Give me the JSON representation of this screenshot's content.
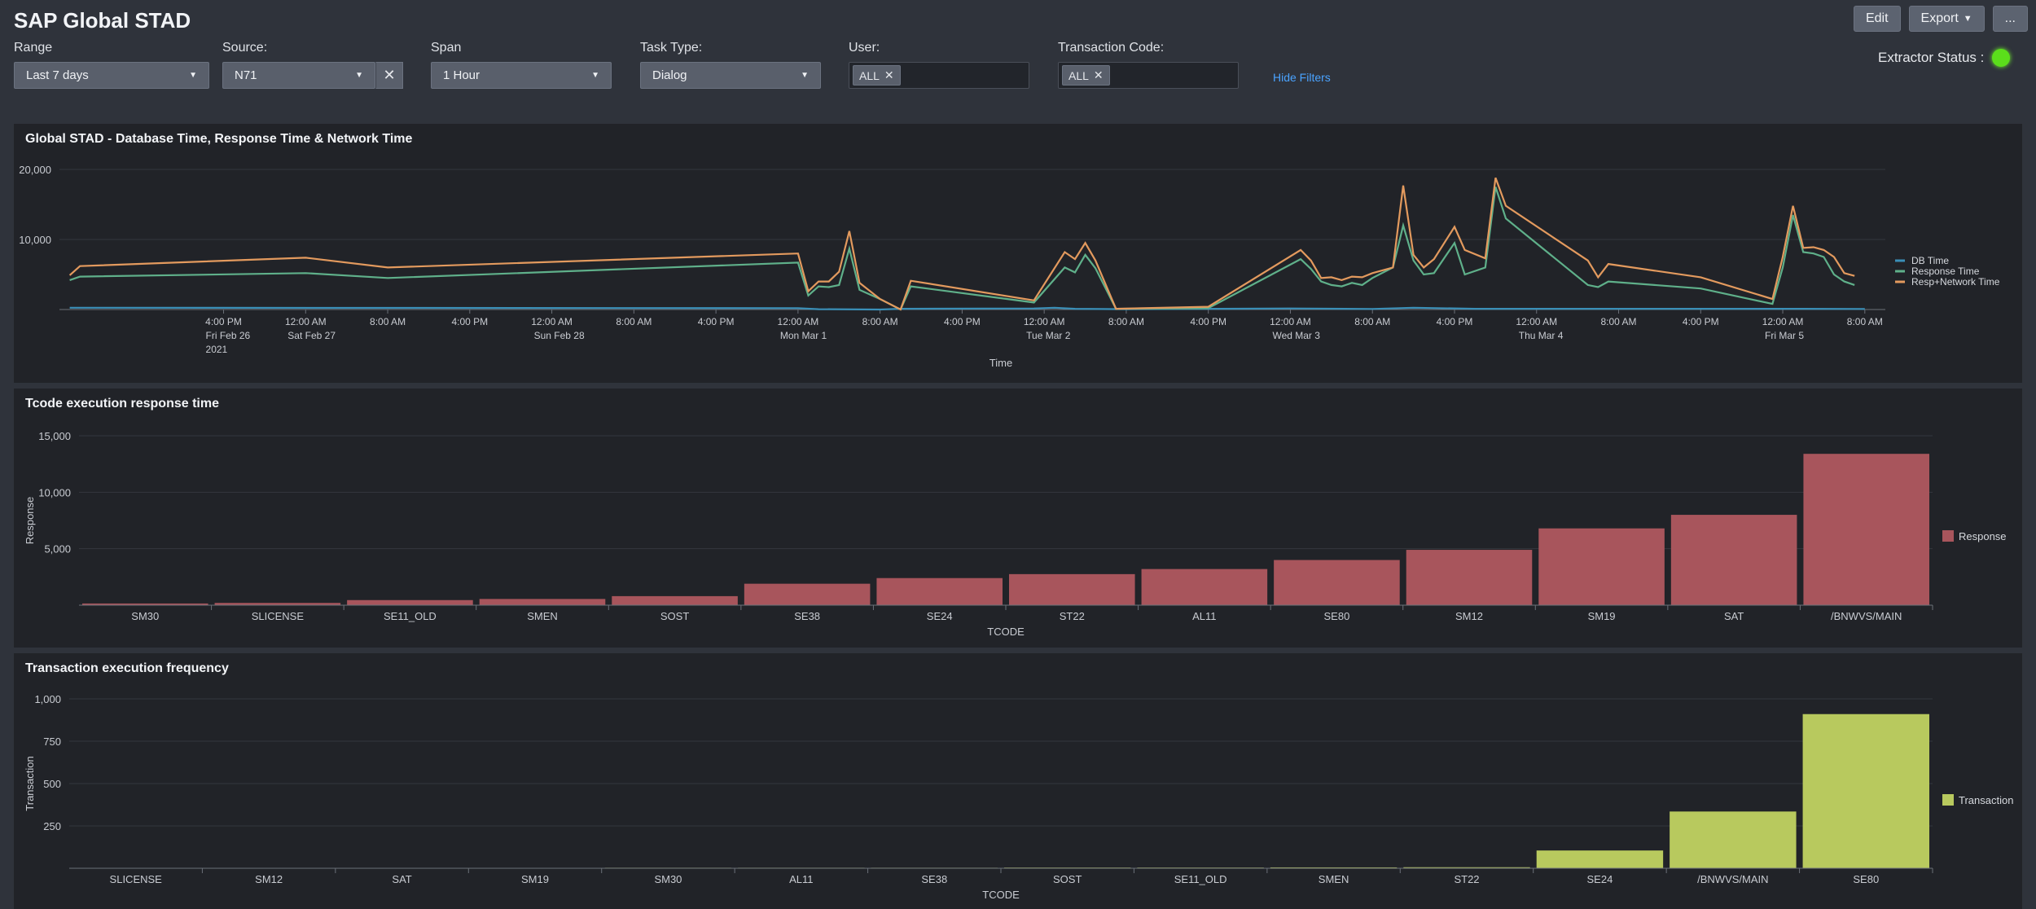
{
  "header": {
    "title": "SAP Global STAD"
  },
  "actions": {
    "edit": "Edit",
    "export": "Export",
    "more": "..."
  },
  "filters": {
    "range": {
      "label": "Range",
      "value": "Last 7 days"
    },
    "source": {
      "label": "Source:",
      "value": "N71"
    },
    "span": {
      "label": "Span",
      "value": "1 Hour"
    },
    "task_type": {
      "label": "Task Type:",
      "value": "Dialog"
    },
    "user": {
      "label": "User:",
      "token": "ALL"
    },
    "tcode": {
      "label": "Transaction Code:",
      "token": "ALL"
    },
    "hide_filters": "Hide Filters"
  },
  "extractor": {
    "label": "Extractor Status :",
    "status_color": "#5bde1b"
  },
  "panels": {
    "timeseries": {
      "title": "Global STAD - Database Time, Response Time & Network Time"
    },
    "response": {
      "title": "Tcode execution response time"
    },
    "frequency": {
      "title": "Transaction execution frequency"
    }
  },
  "chart_data": [
    {
      "type": "line",
      "title": "Global STAD - Database Time, Response Time & Network Time",
      "xlabel": "Time",
      "ylabel": "",
      "ylim": [
        0,
        20000
      ],
      "yticks": [
        10000,
        20000
      ],
      "ytick_labels": [
        "10,000",
        "20,000"
      ],
      "x_range_hours": [
        0,
        178
      ],
      "xticks": [
        {
          "h": 16,
          "lines": [
            "4:00 PM",
            "Fri Feb 26",
            "2021"
          ]
        },
        {
          "h": 24,
          "lines": [
            "12:00 AM",
            "Sat Feb 27"
          ]
        },
        {
          "h": 32,
          "lines": [
            "8:00 AM"
          ]
        },
        {
          "h": 40,
          "lines": [
            "4:00 PM"
          ]
        },
        {
          "h": 48,
          "lines": [
            "12:00 AM",
            "Sun Feb 28"
          ]
        },
        {
          "h": 56,
          "lines": [
            "8:00 AM"
          ]
        },
        {
          "h": 64,
          "lines": [
            "4:00 PM"
          ]
        },
        {
          "h": 72,
          "lines": [
            "12:00 AM",
            "Mon Mar 1"
          ]
        },
        {
          "h": 80,
          "lines": [
            "8:00 AM"
          ]
        },
        {
          "h": 88,
          "lines": [
            "4:00 PM"
          ]
        },
        {
          "h": 96,
          "lines": [
            "12:00 AM",
            "Tue Mar 2"
          ]
        },
        {
          "h": 104,
          "lines": [
            "8:00 AM"
          ]
        },
        {
          "h": 112,
          "lines": [
            "4:00 PM"
          ]
        },
        {
          "h": 120,
          "lines": [
            "12:00 AM",
            "Wed Mar 3"
          ]
        },
        {
          "h": 128,
          "lines": [
            "8:00 AM"
          ]
        },
        {
          "h": 136,
          "lines": [
            "4:00 PM"
          ]
        },
        {
          "h": 144,
          "lines": [
            "12:00 AM",
            "Thu Mar 4"
          ]
        },
        {
          "h": 152,
          "lines": [
            "8:00 AM"
          ]
        },
        {
          "h": 160,
          "lines": [
            "4:00 PM"
          ]
        },
        {
          "h": 168,
          "lines": [
            "12:00 AM",
            "Fri Mar 5"
          ]
        },
        {
          "h": 176,
          "lines": [
            "8:00 AM"
          ]
        }
      ],
      "legend_position": "right",
      "series": [
        {
          "name": "DB Time",
          "color": "#3a8fb7",
          "points": [
            [
              1,
              250
            ],
            [
              72,
              200
            ],
            [
              74,
              50
            ],
            [
              80,
              0
            ],
            [
              82,
              100
            ],
            [
              95,
              150
            ],
            [
              97,
              250
            ],
            [
              99,
              100
            ],
            [
              104,
              50
            ],
            [
              120,
              150
            ],
            [
              128,
              80
            ],
            [
              132,
              250
            ],
            [
              138,
              100
            ],
            [
              170,
              100
            ],
            [
              176,
              80
            ]
          ]
        },
        {
          "name": "Response Time",
          "color": "#5fb08a",
          "points": [
            [
              1,
              4200
            ],
            [
              2,
              4700
            ],
            [
              24,
              5200
            ],
            [
              32,
              4500
            ],
            [
              72,
              6700
            ],
            [
              73,
              2000
            ],
            [
              74,
              3300
            ],
            [
              75,
              3200
            ],
            [
              76,
              3500
            ],
            [
              77,
              8700
            ],
            [
              78,
              2800
            ],
            [
              80,
              1500
            ],
            [
              82,
              0
            ],
            [
              83,
              3300
            ],
            [
              95,
              1000
            ],
            [
              98,
              6000
            ],
            [
              99,
              5300
            ],
            [
              100,
              7800
            ],
            [
              101,
              5900
            ],
            [
              103,
              100
            ],
            [
              112,
              200
            ],
            [
              121,
              7200
            ],
            [
              122,
              5800
            ],
            [
              123,
              4000
            ],
            [
              124,
              3500
            ],
            [
              125,
              3300
            ],
            [
              126,
              3800
            ],
            [
              127,
              3500
            ],
            [
              128,
              4500
            ],
            [
              130,
              6000
            ],
            [
              131,
              12000
            ],
            [
              132,
              7000
            ],
            [
              133,
              5000
            ],
            [
              134,
              5200
            ],
            [
              136,
              9500
            ],
            [
              137,
              5000
            ],
            [
              139,
              6000
            ],
            [
              140,
              17500
            ],
            [
              141,
              13000
            ],
            [
              149,
              3500
            ],
            [
              150,
              3200
            ],
            [
              151,
              4000
            ],
            [
              160,
              3000
            ],
            [
              167,
              800
            ],
            [
              168,
              6000
            ],
            [
              169,
              13500
            ],
            [
              170,
              8200
            ],
            [
              171,
              8000
            ],
            [
              172,
              7500
            ],
            [
              173,
              5000
            ],
            [
              174,
              4000
            ],
            [
              175,
              3500
            ]
          ]
        },
        {
          "name": "Resp+Network Time",
          "color": "#e39a5e",
          "points": [
            [
              1,
              4900
            ],
            [
              2,
              6200
            ],
            [
              24,
              7400
            ],
            [
              32,
              6000
            ],
            [
              72,
              8000
            ],
            [
              73,
              2600
            ],
            [
              74,
              4000
            ],
            [
              75,
              4000
            ],
            [
              76,
              5400
            ],
            [
              77,
              11200
            ],
            [
              78,
              3800
            ],
            [
              80,
              1500
            ],
            [
              82,
              0
            ],
            [
              83,
              4100
            ],
            [
              95,
              1300
            ],
            [
              98,
              8200
            ],
            [
              99,
              7200
            ],
            [
              100,
              9500
            ],
            [
              101,
              7000
            ],
            [
              103,
              100
            ],
            [
              112,
              400
            ],
            [
              121,
              8500
            ],
            [
              122,
              7000
            ],
            [
              123,
              4500
            ],
            [
              124,
              4600
            ],
            [
              125,
              4200
            ],
            [
              126,
              4700
            ],
            [
              127,
              4600
            ],
            [
              128,
              5200
            ],
            [
              130,
              6000
            ],
            [
              131,
              17700
            ],
            [
              132,
              7800
            ],
            [
              133,
              6000
            ],
            [
              134,
              7200
            ],
            [
              136,
              11800
            ],
            [
              137,
              8500
            ],
            [
              139,
              7300
            ],
            [
              140,
              18800
            ],
            [
              141,
              14800
            ],
            [
              149,
              7000
            ],
            [
              150,
              4600
            ],
            [
              151,
              6500
            ],
            [
              160,
              4600
            ],
            [
              167,
              1500
            ],
            [
              168,
              7500
            ],
            [
              169,
              14800
            ],
            [
              170,
              8800
            ],
            [
              171,
              8900
            ],
            [
              172,
              8500
            ],
            [
              173,
              7500
            ],
            [
              174,
              5200
            ],
            [
              175,
              4800
            ]
          ]
        }
      ]
    },
    {
      "type": "bar",
      "title": "Tcode execution response time",
      "xlabel": "TCODE",
      "ylabel": "Response",
      "ylim": [
        0,
        15000
      ],
      "yticks": [
        5000,
        10000,
        15000
      ],
      "ytick_labels": [
        "5,000",
        "10,000",
        "15,000"
      ],
      "categories": [
        "SM30",
        "SLICENSE",
        "SE11_OLD",
        "SMEN",
        "SOST",
        "SE38",
        "SE24",
        "ST22",
        "AL11",
        "SE80",
        "SM12",
        "SM19",
        "SAT",
        "/BNWVS/MAIN"
      ],
      "series": [
        {
          "name": "Response",
          "color": "#a8555c",
          "values": [
            150,
            200,
            450,
            550,
            800,
            1900,
            2400,
            2750,
            3200,
            4000,
            4900,
            6800,
            8000,
            13400
          ]
        }
      ],
      "legend_position": "right"
    },
    {
      "type": "bar",
      "title": "Transaction execution frequency",
      "xlabel": "TCODE",
      "ylabel": "Transaction",
      "ylim": [
        0,
        1000
      ],
      "yticks": [
        250,
        500,
        750,
        1000
      ],
      "ytick_labels": [
        "250",
        "500",
        "750",
        "1,000"
      ],
      "categories": [
        "SLICENSE",
        "SM12",
        "SAT",
        "SM19",
        "SM30",
        "AL11",
        "SE38",
        "SOST",
        "SE11_OLD",
        "SMEN",
        "ST22",
        "SE24",
        "/BNWVS/MAIN",
        "SE80"
      ],
      "series": [
        {
          "name": "Transaction",
          "color": "#b8c95e",
          "values": [
            2,
            2,
            2,
            2,
            3,
            3,
            3,
            4,
            4,
            5,
            6,
            105,
            335,
            910
          ]
        }
      ],
      "legend_position": "right"
    }
  ]
}
